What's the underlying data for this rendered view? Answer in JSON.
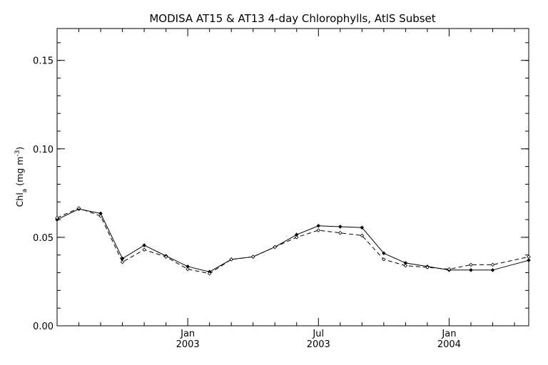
{
  "chart_data": {
    "type": "line",
    "title": "MODISA AT15 & AT13 4-day Chlorophylls, AtlS Subset",
    "ylabel": {
      "main": "Chl",
      "sub": "a",
      "units_prefix": "(mg m",
      "units_sup": "-3",
      "units_suffix": ")"
    },
    "xlabel": "",
    "ylim": [
      0.0,
      0.168
    ],
    "yticks": [
      {
        "value": 0.0,
        "label": "0.00"
      },
      {
        "value": 0.05,
        "label": "0.05"
      },
      {
        "value": 0.1,
        "label": "0.10"
      },
      {
        "value": 0.15,
        "label": "0.15"
      }
    ],
    "y_minor_step": 0.01,
    "x_unit": "month",
    "xlim": [
      "2002-07-01",
      "2004-04-21"
    ],
    "xticks": [
      {
        "date": "2003-01",
        "month_label": "Jan",
        "year_label": "2003"
      },
      {
        "date": "2003-07",
        "month_label": "Jul",
        "year_label": "2003"
      },
      {
        "date": "2004-01",
        "month_label": "Jan",
        "year_label": "2004"
      }
    ],
    "x_minor_months": [
      "2002-08",
      "2002-09",
      "2002-10",
      "2002-11",
      "2002-12",
      "2003-02",
      "2003-03",
      "2003-04",
      "2003-05",
      "2003-06",
      "2003-08",
      "2003-09",
      "2003-10",
      "2003-11",
      "2003-12",
      "2004-02",
      "2004-03",
      "2004-04"
    ],
    "x": [
      "2002-07-01",
      "2002-08-01",
      "2002-09-01",
      "2002-10-01",
      "2002-11-01",
      "2002-12-01",
      "2003-01-01",
      "2003-02-01",
      "2003-03-01",
      "2003-04-01",
      "2003-05-01",
      "2003-06-01",
      "2003-07-01",
      "2003-08-01",
      "2003-09-01",
      "2003-10-01",
      "2003-11-01",
      "2003-12-01",
      "2004-01-01",
      "2004-02-01",
      "2004-03-01",
      "2004-04-21"
    ],
    "series": [
      {
        "style": "solid",
        "color": "#000000",
        "values": [
          0.06,
          0.066,
          0.0635,
          0.038,
          0.0455,
          0.0395,
          0.0335,
          0.0305,
          0.0375,
          0.039,
          0.0445,
          0.0515,
          0.0565,
          0.056,
          0.0555,
          0.041,
          0.0355,
          0.0335,
          0.0315,
          0.0315,
          0.0315,
          0.037
        ]
      },
      {
        "style": "dashed",
        "color": "#000000",
        "values": [
          0.061,
          0.0665,
          0.062,
          0.036,
          0.043,
          0.039,
          0.032,
          0.0295,
          0.0375,
          0.039,
          0.0445,
          0.05,
          0.054,
          0.0525,
          0.051,
          0.0375,
          0.034,
          0.033,
          0.032,
          0.0345,
          0.0345,
          0.039
        ]
      }
    ],
    "grid": false,
    "legend": "none"
  }
}
